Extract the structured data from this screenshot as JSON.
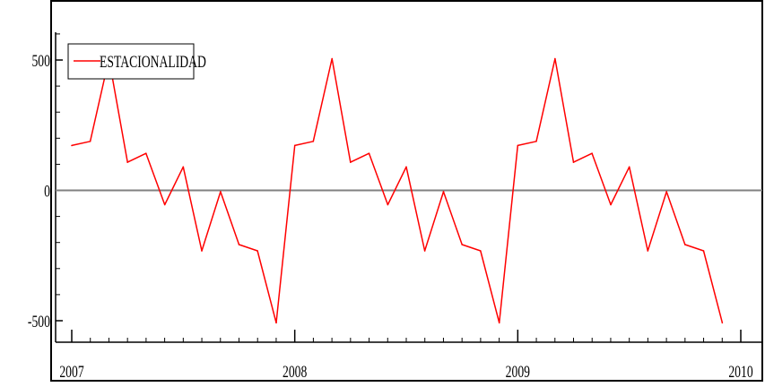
{
  "chart_data": {
    "type": "line",
    "title": "",
    "xlabel": "",
    "ylabel": "",
    "xlim": [
      2007,
      2010
    ],
    "ylim": [
      -560,
      600
    ],
    "x_ticks": [
      2007,
      2008,
      2009,
      2010
    ],
    "x_tick_labels": [
      "2007",
      "2008",
      "2009",
      "2010"
    ],
    "y_ticks": [
      -500,
      0,
      500
    ],
    "y_tick_labels": [
      "-500",
      "0",
      "500"
    ],
    "reference_line": {
      "y": 0,
      "color": "#808080"
    },
    "legend": {
      "position": "top-left"
    },
    "grid": false,
    "series": [
      {
        "name": "ESTACIONALIDAD",
        "color": "#ff0000",
        "x": [
          2007.0,
          2007.083,
          2007.167,
          2007.25,
          2007.333,
          2007.417,
          2007.5,
          2007.583,
          2007.667,
          2007.75,
          2007.833,
          2007.917,
          2008.0,
          2008.083,
          2008.167,
          2008.25,
          2008.333,
          2008.417,
          2008.5,
          2008.583,
          2008.667,
          2008.75,
          2008.833,
          2008.917,
          2009.0,
          2009.083,
          2009.167,
          2009.25,
          2009.333,
          2009.417,
          2009.5,
          2009.583,
          2009.667,
          2009.75,
          2009.833,
          2009.917
        ],
        "values": [
          172,
          188,
          505,
          108,
          142,
          -55,
          90,
          -232,
          -5,
          -208,
          -232,
          -508,
          172,
          188,
          505,
          108,
          142,
          -55,
          90,
          -232,
          -5,
          -208,
          -232,
          -508,
          172,
          188,
          505,
          108,
          142,
          -55,
          90,
          -232,
          -5,
          -208,
          -232,
          -508
        ]
      }
    ]
  }
}
